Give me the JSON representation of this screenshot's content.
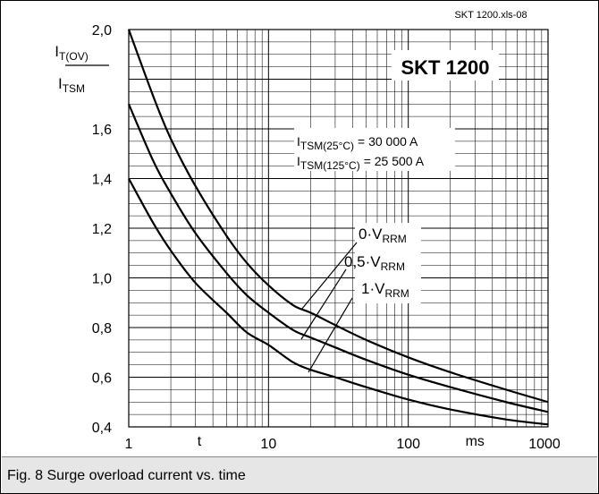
{
  "file_ref": "SKT 1200.xls-08",
  "caption": "Fig. 8 Surge overload current vs. time",
  "chart_data": {
    "type": "line",
    "title": "SKT 1200",
    "x_scale": "log",
    "xlim": [
      1,
      1000
    ],
    "ylim": [
      0.4,
      2.0
    ],
    "grid": true,
    "x_tick_labels": [
      "1",
      "10",
      "100",
      "1000"
    ],
    "y_tick_labels": [
      "2,0",
      "1,6",
      "1,4",
      "1,2",
      "1,0",
      "0,8",
      "0,6",
      "0,4"
    ],
    "xlabel_parts": {
      "t": "t",
      "unit": "ms"
    },
    "ylabel": {
      "num_main": "I",
      "num_sub": "T(OV)",
      "den_main": "I",
      "den_sub": "TSM"
    },
    "annotations": [
      {
        "main": "I",
        "sub": "TSM(25°C)",
        "rest": "= 30 000 A"
      },
      {
        "main": "I",
        "sub": "TSM(125°C)",
        "rest": "= 25 500 A"
      }
    ],
    "series": [
      {
        "name": "0·V_RRM",
        "label_main": "0·V",
        "label_sub": "RRM",
        "points": [
          [
            1,
            2.0
          ],
          [
            1.5,
            1.73
          ],
          [
            2,
            1.56
          ],
          [
            3,
            1.37
          ],
          [
            5,
            1.17
          ],
          [
            7,
            1.06
          ],
          [
            10,
            0.97
          ],
          [
            15,
            0.89
          ],
          [
            20,
            0.86
          ],
          [
            30,
            0.81
          ],
          [
            50,
            0.75
          ],
          [
            100,
            0.68
          ],
          [
            200,
            0.62
          ],
          [
            500,
            0.55
          ],
          [
            1000,
            0.5
          ]
        ]
      },
      {
        "name": "0,5·V_RRM",
        "label_main": "0,5·V",
        "label_sub": "RRM",
        "points": [
          [
            1,
            1.7
          ],
          [
            1.5,
            1.47
          ],
          [
            2,
            1.34
          ],
          [
            3,
            1.18
          ],
          [
            5,
            1.02
          ],
          [
            7,
            0.93
          ],
          [
            10,
            0.86
          ],
          [
            15,
            0.79
          ],
          [
            20,
            0.76
          ],
          [
            30,
            0.72
          ],
          [
            50,
            0.67
          ],
          [
            100,
            0.61
          ],
          [
            200,
            0.56
          ],
          [
            500,
            0.5
          ],
          [
            1000,
            0.46
          ]
        ]
      },
      {
        "name": "1·V_RRM",
        "label_main": "1·V",
        "label_sub": "RRM",
        "points": [
          [
            1,
            1.4
          ],
          [
            1.5,
            1.22
          ],
          [
            2,
            1.11
          ],
          [
            3,
            0.98
          ],
          [
            5,
            0.86
          ],
          [
            7,
            0.78
          ],
          [
            10,
            0.73
          ],
          [
            15,
            0.66
          ],
          [
            20,
            0.63
          ],
          [
            30,
            0.6
          ],
          [
            50,
            0.56
          ],
          [
            100,
            0.51
          ],
          [
            200,
            0.47
          ],
          [
            500,
            0.43
          ],
          [
            1000,
            0.41
          ]
        ]
      }
    ]
  }
}
